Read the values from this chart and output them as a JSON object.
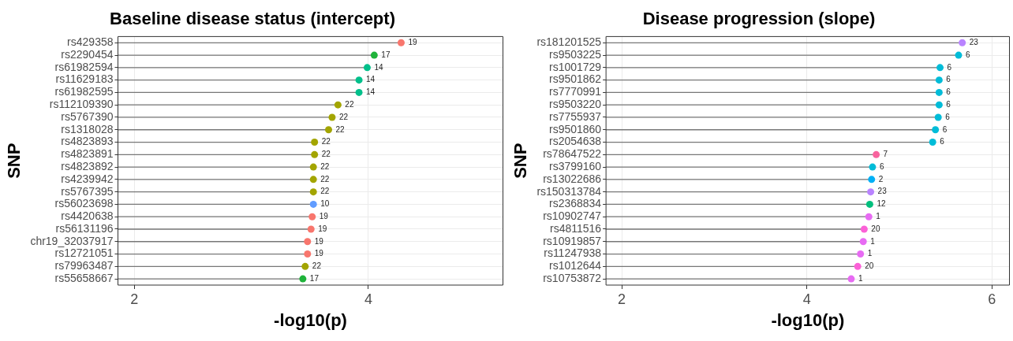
{
  "chart_data": [
    {
      "type": "lollipop",
      "orientation": "horizontal",
      "title": "Baseline disease status (intercept)",
      "xlabel": "-log10(p)",
      "ylabel": "SNP",
      "grid": true,
      "legend": false,
      "marker": "circle",
      "xlim": [
        1.86,
        5.15
      ],
      "xticks": [
        2,
        4
      ],
      "categories": [
        "rs429358",
        "rs2290454",
        "rs61982594",
        "rs11629183",
        "rs61982595",
        "rs112109390",
        "rs5767390",
        "rs1318028",
        "rs4823893",
        "rs4823891",
        "rs4823892",
        "rs4239942",
        "rs5767395",
        "rs56023698",
        "rs4420638",
        "rs56131196",
        "chr19_32037917",
        "rs12721051",
        "rs79963487",
        "rs55658667"
      ],
      "values": [
        4.28,
        4.05,
        3.99,
        3.92,
        3.92,
        3.74,
        3.69,
        3.66,
        3.54,
        3.54,
        3.53,
        3.53,
        3.53,
        3.53,
        3.52,
        3.51,
        3.48,
        3.48,
        3.46,
        3.44
      ],
      "colors": [
        "#f8766d",
        "#1fb33a",
        "#00c08b",
        "#00c08b",
        "#00c08b",
        "#a3a500",
        "#a3a500",
        "#a3a500",
        "#a3a500",
        "#a3a500",
        "#a3a500",
        "#a3a500",
        "#a3a500",
        "#619cff",
        "#f8766d",
        "#f8766d",
        "#f8766d",
        "#f8766d",
        "#a3a500",
        "#1fb33a"
      ],
      "annotations": [
        {
          "text": "19",
          "x": 4.28,
          "y": "rs429358"
        },
        {
          "text": "17",
          "x": 4.05,
          "y": "rs2290454"
        },
        {
          "text": "14",
          "x": 3.99,
          "y": "rs61982594"
        },
        {
          "text": "14",
          "x": 3.92,
          "y": "rs11629183"
        },
        {
          "text": "14",
          "x": 3.92,
          "y": "rs61982595"
        },
        {
          "text": "22",
          "x": 3.74,
          "y": "rs112109390"
        },
        {
          "text": "22",
          "x": 3.69,
          "y": "rs5767390"
        },
        {
          "text": "22",
          "x": 3.66,
          "y": "rs1318028"
        },
        {
          "text": "22",
          "x": 3.54,
          "y": "rs4823893"
        },
        {
          "text": "22",
          "x": 3.54,
          "y": "rs4823891"
        },
        {
          "text": "22",
          "x": 3.53,
          "y": "rs4823892"
        },
        {
          "text": "22",
          "x": 3.53,
          "y": "rs4239942"
        },
        {
          "text": "22",
          "x": 3.53,
          "y": "rs5767395"
        },
        {
          "text": "10",
          "x": 3.53,
          "y": "rs56023698"
        },
        {
          "text": "19",
          "x": 3.52,
          "y": "rs4420638"
        },
        {
          "text": "19",
          "x": 3.51,
          "y": "rs56131196"
        },
        {
          "text": "19",
          "x": 3.48,
          "y": "chr19_32037917"
        },
        {
          "text": "19",
          "x": 3.48,
          "y": "rs12721051"
        },
        {
          "text": "22",
          "x": 3.46,
          "y": "rs79963487"
        },
        {
          "text": "17",
          "x": 3.44,
          "y": "rs55658667"
        }
      ]
    },
    {
      "type": "lollipop",
      "orientation": "horizontal",
      "title": "Disease progression (slope)",
      "xlabel": "-log10(p)",
      "ylabel": "SNP",
      "grid": true,
      "legend": false,
      "marker": "circle",
      "xlim": [
        1.83,
        6.19
      ],
      "xticks": [
        2,
        4,
        6
      ],
      "categories": [
        "rs181201525",
        "rs9503225",
        "rs1001729",
        "rs9501862",
        "rs7770991",
        "rs9503220",
        "rs7755937",
        "rs9501860",
        "rs2054638",
        "rs78647522",
        "rs3799160",
        "rs13022686",
        "rs150313784",
        "rs2368834",
        "rs10902747",
        "rs4811516",
        "rs10919857",
        "rs11247938",
        "rs1012644",
        "rs10753872"
      ],
      "values": [
        5.68,
        5.64,
        5.44,
        5.43,
        5.43,
        5.43,
        5.42,
        5.39,
        5.36,
        4.75,
        4.71,
        4.7,
        4.69,
        4.68,
        4.67,
        4.62,
        4.61,
        4.58,
        4.55,
        4.48
      ],
      "colors": [
        "#b983ff",
        "#00bcd8",
        "#00bcd8",
        "#00bcd8",
        "#00bcd8",
        "#00bcd8",
        "#00bcd8",
        "#00bcd8",
        "#00bcd8",
        "#f8649e",
        "#00bcd8",
        "#00b0f6",
        "#b983ff",
        "#00bf7d",
        "#e76bf3",
        "#fb61d7",
        "#e76bf3",
        "#e76bf3",
        "#fb61d7",
        "#e76bf3"
      ],
      "annotations": [
        {
          "text": "23",
          "x": 5.68,
          "y": "rs181201525"
        },
        {
          "text": "6",
          "x": 5.64,
          "y": "rs9503225"
        },
        {
          "text": "6",
          "x": 5.44,
          "y": "rs1001729"
        },
        {
          "text": "6",
          "x": 5.43,
          "y": "rs9501862"
        },
        {
          "text": "6",
          "x": 5.43,
          "y": "rs7770991"
        },
        {
          "text": "6",
          "x": 5.43,
          "y": "rs9503220"
        },
        {
          "text": "6",
          "x": 5.42,
          "y": "rs7755937"
        },
        {
          "text": "6",
          "x": 5.39,
          "y": "rs9501860"
        },
        {
          "text": "6",
          "x": 5.36,
          "y": "rs2054638"
        },
        {
          "text": "7",
          "x": 4.75,
          "y": "rs78647522"
        },
        {
          "text": "6",
          "x": 4.71,
          "y": "rs3799160"
        },
        {
          "text": "2",
          "x": 4.7,
          "y": "rs13022686"
        },
        {
          "text": "23",
          "x": 4.69,
          "y": "rs150313784"
        },
        {
          "text": "12",
          "x": 4.68,
          "y": "rs2368834"
        },
        {
          "text": "1",
          "x": 4.67,
          "y": "rs10902747"
        },
        {
          "text": "20",
          "x": 4.62,
          "y": "rs4811516"
        },
        {
          "text": "1",
          "x": 4.61,
          "y": "rs10919857"
        },
        {
          "text": "1",
          "x": 4.58,
          "y": "rs11247938"
        },
        {
          "text": "20",
          "x": 4.55,
          "y": "rs1012644"
        },
        {
          "text": "1",
          "x": 4.48,
          "y": "rs10753872"
        }
      ]
    }
  ]
}
